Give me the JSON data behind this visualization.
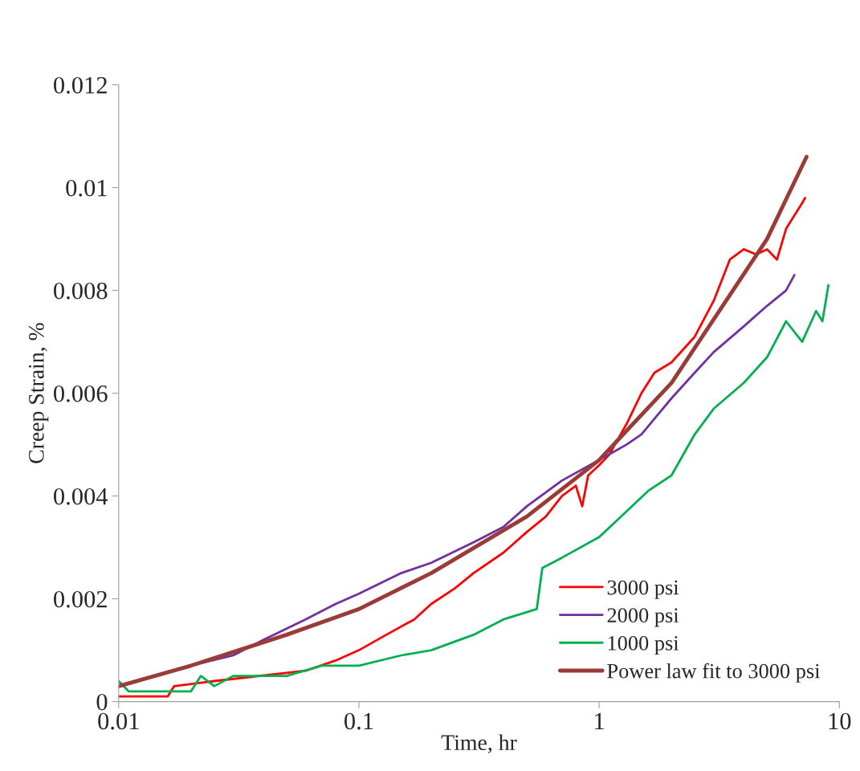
{
  "chart_data": {
    "type": "line",
    "xlabel": "Time, hr",
    "ylabel": "Creep Strain, %",
    "log": "x",
    "xlim": [
      0.01,
      10
    ],
    "xticks": [
      0.01,
      0.1,
      1,
      10
    ],
    "ylim": [
      0,
      0.012
    ],
    "yticks": [
      0,
      0.002,
      0.004,
      0.006,
      0.008,
      0.01,
      0.012
    ],
    "grid": false,
    "legend": "bottom right",
    "marker": "none",
    "line_style": "solid",
    "series": [
      {
        "name": "3000 psi",
        "color": "#ff0000",
        "x": [
          0.01,
          0.016,
          0.017,
          0.025,
          0.06,
          0.08,
          0.1,
          0.13,
          0.17,
          0.2,
          0.25,
          0.3,
          0.4,
          0.5,
          0.6,
          0.7,
          0.8,
          0.85,
          0.9,
          1.0,
          1.1,
          1.3,
          1.5,
          1.7,
          2,
          2.5,
          3,
          3.5,
          4,
          4.5,
          5,
          5.5,
          6,
          7,
          7.2
        ],
        "values": [
          0.0001,
          0.0001,
          0.0003,
          0.0004,
          0.0006,
          0.0008,
          0.001,
          0.0013,
          0.0016,
          0.0019,
          0.0022,
          0.0025,
          0.0029,
          0.0033,
          0.0036,
          0.004,
          0.0042,
          0.0038,
          0.0044,
          0.0046,
          0.0048,
          0.0054,
          0.006,
          0.0064,
          0.0066,
          0.0071,
          0.0078,
          0.0086,
          0.0088,
          0.0087,
          0.0088,
          0.0086,
          0.0092,
          0.0097,
          0.0098
        ]
      },
      {
        "name": "2000 psi",
        "color": "#7030a0",
        "x": [
          0.01,
          0.02,
          0.03,
          0.04,
          0.06,
          0.08,
          0.1,
          0.15,
          0.2,
          0.3,
          0.4,
          0.5,
          0.7,
          1,
          1.3,
          1.5,
          2,
          2.5,
          3,
          4,
          5,
          6,
          6.5
        ],
        "values": [
          0.0003,
          0.0007,
          0.0009,
          0.0012,
          0.0016,
          0.0019,
          0.0021,
          0.0025,
          0.0027,
          0.0031,
          0.0034,
          0.0038,
          0.0043,
          0.0047,
          0.005,
          0.0052,
          0.0059,
          0.0064,
          0.0068,
          0.0073,
          0.0077,
          0.008,
          0.0083
        ]
      },
      {
        "name": "1000 psi",
        "color": "#00b050",
        "x": [
          0.01,
          0.011,
          0.02,
          0.022,
          0.025,
          0.03,
          0.05,
          0.07,
          0.1,
          0.15,
          0.2,
          0.3,
          0.4,
          0.55,
          0.58,
          0.7,
          1,
          1.3,
          1.6,
          2,
          2.5,
          3,
          4,
          5,
          6,
          7,
          8,
          8.5,
          9
        ],
        "values": [
          0.0004,
          0.0002,
          0.0002,
          0.0005,
          0.0003,
          0.0005,
          0.0005,
          0.0007,
          0.0007,
          0.0009,
          0.001,
          0.0013,
          0.0016,
          0.0018,
          0.0026,
          0.0028,
          0.0032,
          0.0037,
          0.0041,
          0.0044,
          0.0052,
          0.0057,
          0.0062,
          0.0067,
          0.0074,
          0.007,
          0.0076,
          0.0074,
          0.0081
        ]
      },
      {
        "name": "Power law fit to 3000 psi",
        "color": "#9b3b37",
        "x": [
          0.01,
          0.02,
          0.05,
          0.1,
          0.2,
          0.5,
          1,
          2,
          5,
          7.3
        ],
        "values": [
          0.0003,
          0.0007,
          0.0013,
          0.0018,
          0.0025,
          0.0036,
          0.0047,
          0.0062,
          0.009,
          0.0106
        ]
      }
    ]
  }
}
